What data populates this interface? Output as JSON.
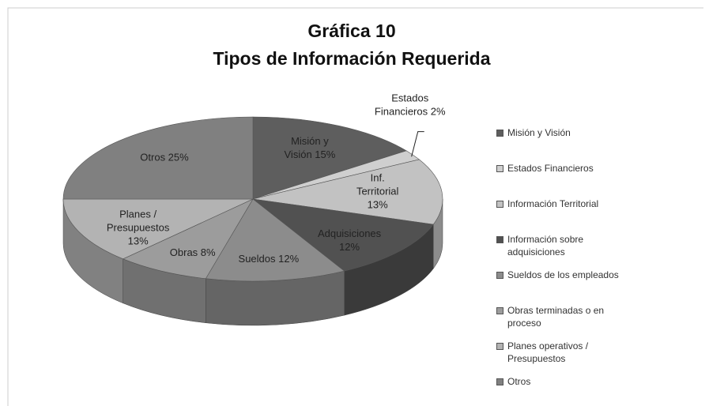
{
  "chart_data": {
    "type": "pie",
    "title": "Gráfica 10",
    "subtitle": "Tipos de Información Requerida",
    "categories": [
      "Misión y Visión",
      "Estados Financieros",
      "Información Territorial",
      "Información sobre adquisiciones",
      "Sueldos de los empleados",
      "Obras terminadas o en proceso",
      "Planes operativos / Presupuestos",
      "Otros"
    ],
    "values": [
      15,
      2,
      13,
      12,
      12,
      8,
      13,
      25
    ],
    "value_labels": [
      "Misión y Visión 15%",
      "Estados Financieros 2%",
      "Inf. Territorial 13%",
      "Adquisiciones 12%",
      "Sueldos 12%",
      "Obras 8%",
      "Planes / Presupuestos 13%",
      "Otros 25%"
    ],
    "colors": [
      "#5e5e5e",
      "#cfcfcf",
      "#c2c2c2",
      "#515151",
      "#8c8c8c",
      "#9c9c9c",
      "#b3b3b3",
      "#808080"
    ],
    "legend": "right"
  }
}
